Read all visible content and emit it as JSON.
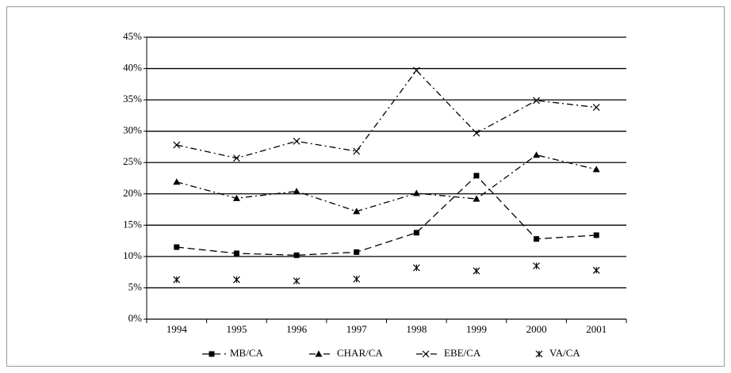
{
  "chart_data": {
    "type": "line",
    "categories": [
      "1994",
      "1995",
      "1996",
      "1997",
      "1998",
      "1999",
      "2000",
      "2001"
    ],
    "series": [
      {
        "name": "MB/CA",
        "color": "#000000",
        "marker": "square",
        "line": "dashed",
        "values": [
          11.5,
          10.5,
          10.2,
          10.7,
          13.8,
          22.9,
          12.8,
          13.4
        ]
      },
      {
        "name": "CHAR/CA",
        "color": "#000000",
        "marker": "triangle",
        "line": "dash-dot",
        "values": [
          21.9,
          19.3,
          20.4,
          17.2,
          20.1,
          19.2,
          26.2,
          23.9
        ]
      },
      {
        "name": "EBE/CA",
        "color": "#000000",
        "marker": "x",
        "line": "dash-dot",
        "values": [
          27.8,
          25.7,
          28.4,
          26.8,
          39.7,
          29.7,
          34.9,
          33.8
        ]
      },
      {
        "name": "VA/CA",
        "color": "#000000",
        "marker": "star",
        "line": "none",
        "values": [
          6.3,
          6.3,
          6.1,
          6.4,
          8.2,
          7.7,
          8.5,
          7.8
        ]
      }
    ],
    "ylim": [
      0,
      45
    ],
    "yticks": [
      {
        "value": 0,
        "label": "0%"
      },
      {
        "value": 5,
        "label": "5%"
      },
      {
        "value": 10,
        "label": "10%"
      },
      {
        "value": 15,
        "label": "15%"
      },
      {
        "value": 20,
        "label": "20%"
      },
      {
        "value": 25,
        "label": "25%"
      },
      {
        "value": 30,
        "label": "30%"
      },
      {
        "value": 35,
        "label": "35%"
      },
      {
        "value": 40,
        "label": "40%"
      },
      {
        "value": 45,
        "label": "45%"
      }
    ],
    "grid": true,
    "legend": "bottom"
  }
}
